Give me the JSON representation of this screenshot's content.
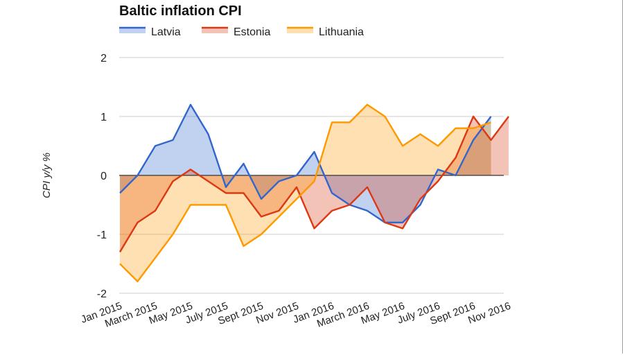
{
  "chart_data": {
    "type": "area",
    "title": "Baltic inflation CPI",
    "ylabel": "CPI y/y %",
    "xlabel": "",
    "ylim": [
      -2,
      2
    ],
    "yticks": [
      2,
      1,
      0,
      -1,
      -2
    ],
    "legend_position": "top-left",
    "grid": true,
    "categories": [
      "Jan 2015",
      "Feb 2015",
      "March 2015",
      "Apr 2015",
      "May 2015",
      "June 2015",
      "July 2015",
      "Aug 2015",
      "Sept 2015",
      "Oct 2015",
      "Nov 2015",
      "Dec 2015",
      "Jan 2016",
      "Feb 2016",
      "March 2016",
      "Apr 2016",
      "May 2016",
      "June 2016",
      "July 2016",
      "Aug 2016",
      "Sept 2016",
      "Oct 2016",
      "Nov 2016"
    ],
    "tick_labels": [
      "Jan 2015",
      "March 2015",
      "May 2015",
      "July 2015",
      "Sept 2015",
      "Nov 2015",
      "Jan 2016",
      "March 2016",
      "May 2016",
      "July 2016",
      "Sept 2016",
      "Nov 2016"
    ],
    "series": [
      {
        "name": "Latvia",
        "color": "#3366cc",
        "fill": "#b3c6ec",
        "values": [
          -0.3,
          0.0,
          0.5,
          0.6,
          1.2,
          0.7,
          -0.2,
          0.2,
          -0.4,
          -0.1,
          0.0,
          0.4,
          -0.3,
          -0.5,
          -0.6,
          -0.8,
          -0.8,
          -0.5,
          0.1,
          0.0,
          0.6,
          1.0,
          null
        ]
      },
      {
        "name": "Estonia",
        "color": "#dc3912",
        "fill": "#f0aa9c",
        "values": [
          -1.3,
          -0.8,
          -0.6,
          -0.1,
          0.1,
          -0.1,
          -0.3,
          -0.3,
          -0.7,
          -0.6,
          -0.2,
          -0.9,
          -0.6,
          -0.5,
          -0.2,
          -0.8,
          -0.9,
          -0.4,
          -0.1,
          0.3,
          1.0,
          0.6,
          1.0
        ]
      },
      {
        "name": "Lithuania",
        "color": "#ff9900",
        "fill": "#ffcc7f",
        "values": [
          -1.5,
          -1.8,
          -1.4,
          -1.0,
          -0.5,
          -0.5,
          -0.5,
          -1.2,
          -1.0,
          -0.7,
          -0.4,
          -0.1,
          0.9,
          0.9,
          1.2,
          1.0,
          0.5,
          0.7,
          0.5,
          0.8,
          0.8,
          0.9,
          null
        ]
      }
    ]
  }
}
